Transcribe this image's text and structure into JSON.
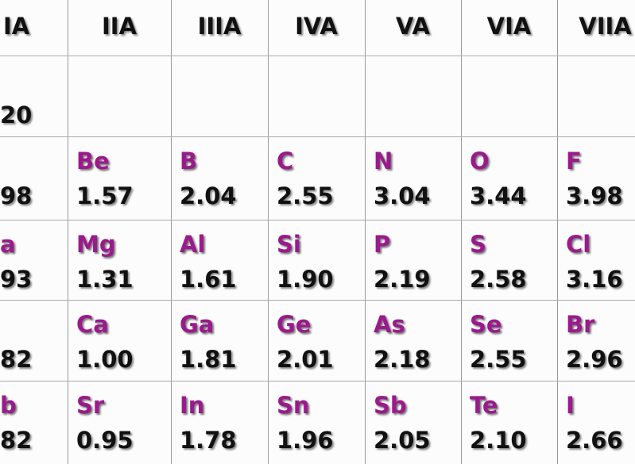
{
  "header": {
    "columns": [
      "IA",
      "IIA",
      "IIIA",
      "IVA",
      "VA",
      "VIA",
      "VIIA"
    ]
  },
  "table": {
    "rows": [
      [
        {
          "value": "20"
        },
        {},
        {},
        {},
        {},
        {},
        {}
      ],
      [
        {
          "value": "98"
        },
        {
          "symbol": "Be",
          "value": "1.57"
        },
        {
          "symbol": "B",
          "value": "2.04"
        },
        {
          "symbol": "C",
          "value": "2.55"
        },
        {
          "symbol": "N",
          "value": "3.04"
        },
        {
          "symbol": "O",
          "value": "3.44"
        },
        {
          "symbol": "F",
          "value": "3.98"
        }
      ],
      [
        {
          "symbol": "a",
          "value": "93"
        },
        {
          "symbol": "Mg",
          "value": "1.31"
        },
        {
          "symbol": "Al",
          "value": "1.61"
        },
        {
          "symbol": "Si",
          "value": "1.90"
        },
        {
          "symbol": "P",
          "value": "2.19"
        },
        {
          "symbol": "S",
          "value": "2.58"
        },
        {
          "symbol": "Cl",
          "value": "3.16"
        }
      ],
      [
        {
          "value": "82"
        },
        {
          "symbol": "Ca",
          "value": "1.00"
        },
        {
          "symbol": "Ga",
          "value": "1.81"
        },
        {
          "symbol": "Ge",
          "value": "2.01"
        },
        {
          "symbol": "As",
          "value": "2.18"
        },
        {
          "symbol": "Se",
          "value": "2.55"
        },
        {
          "symbol": "Br",
          "value": "2.96"
        }
      ],
      [
        {
          "symbol": "b",
          "value": "82"
        },
        {
          "symbol": "Sr",
          "value": "0.95"
        },
        {
          "symbol": "In",
          "value": "1.78"
        },
        {
          "symbol": "Sn",
          "value": "1.96"
        },
        {
          "symbol": "Sb",
          "value": "2.05"
        },
        {
          "symbol": "Te",
          "value": "2.10"
        },
        {
          "symbol": "I",
          "value": "2.66"
        }
      ]
    ]
  }
}
